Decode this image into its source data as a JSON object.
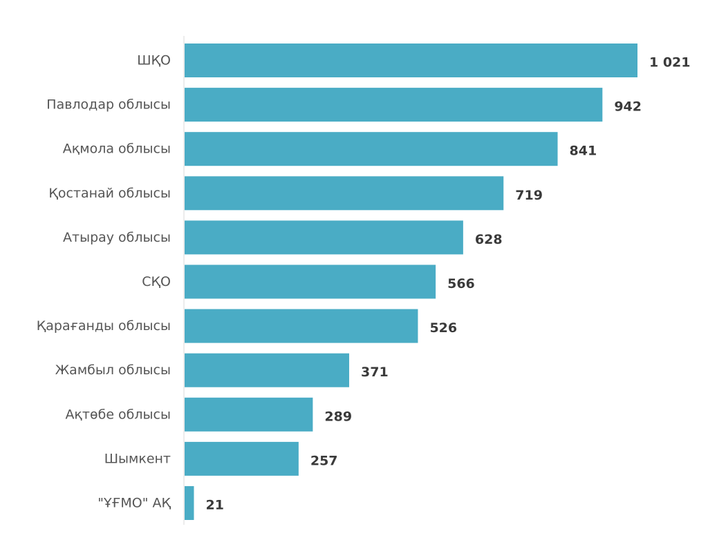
{
  "chart_data": {
    "type": "bar",
    "orientation": "horizontal",
    "categories": [
      "ШҚО",
      "Павлодар облысы",
      "Ақмола облысы",
      "Қостанай облысы",
      "Атырау облысы",
      "СҚО",
      "Қарағанды облысы",
      "Жамбыл облысы",
      "Ақтөбе облысы",
      "Шымкент",
      "\"ҰҒМО\" АҚ"
    ],
    "values": [
      1021,
      942,
      841,
      719,
      628,
      566,
      526,
      371,
      289,
      257,
      21
    ],
    "value_labels": [
      "1 021",
      "942",
      "841",
      "719",
      "628",
      "566",
      "526",
      "371",
      "289",
      "257",
      "21"
    ],
    "title": "",
    "xlabel": "",
    "ylabel": "",
    "xlim": [
      0,
      1021
    ],
    "grid": false,
    "legend": "none",
    "colors": {
      "bar": "#4aacc5",
      "category_text": "#555555",
      "value_text": "#3a3a3a",
      "axis_line": "#e6e6e6"
    }
  }
}
